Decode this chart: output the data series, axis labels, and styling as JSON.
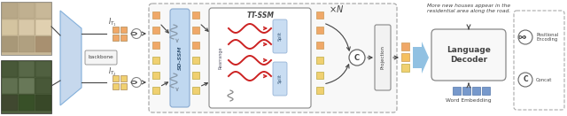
{
  "bg_color": "#ffffff",
  "orange": "#F0A868",
  "yellow": "#F0D070",
  "light_blue": "#B8D0EC",
  "mid_blue": "#7AAAD8",
  "arrow_blue": "#85B8E0",
  "dark_gray": "#444444",
  "med_gray": "#888888",
  "light_gray": "#DDDDDD",
  "caption": "More new houses appear in the\nresidential area along the road.",
  "word_emb_label": "Word Embedding",
  "pos_enc_label": "Positional\nEncoding",
  "concat_label": "Concat"
}
